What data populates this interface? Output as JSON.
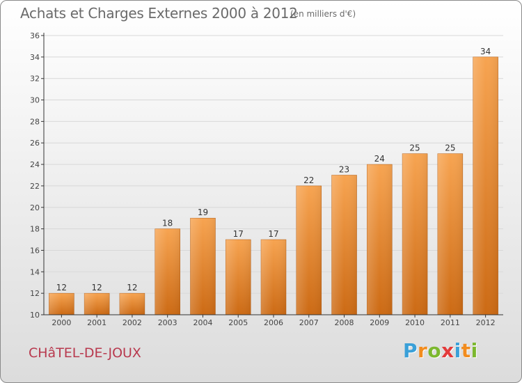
{
  "header": {
    "title": "Achats et Charges Externes 2000 à 2012",
    "subtitle": "(en milliers d'€)"
  },
  "footer": {
    "commune": "CHâTEL-DE-JOUX",
    "logo_letters": [
      "P",
      "r",
      "o",
      "x",
      "i",
      "t",
      "i"
    ],
    "logo_colors": [
      "#3aa0d8",
      "#f28c1e",
      "#7cb82f",
      "#e33b3b",
      "#3aa0d8",
      "#f28c1e",
      "#7cb82f"
    ]
  },
  "colors": {
    "bar_top": "#f7a451",
    "bar_bottom": "#cc6a14",
    "axis": "#333333",
    "grid": "#d8d8d8"
  },
  "chart_data": {
    "type": "bar",
    "title": "Achats et Charges Externes 2000 à 2012",
    "subtitle": "(en milliers d'€)",
    "categories": [
      "2000",
      "2001",
      "2002",
      "2003",
      "2004",
      "2005",
      "2006",
      "2007",
      "2008",
      "2009",
      "2010",
      "2011",
      "2012"
    ],
    "values": [
      12,
      12,
      12,
      18,
      19,
      17,
      17,
      22,
      23,
      24,
      25,
      25,
      34
    ],
    "ylim": [
      10,
      36
    ],
    "yticks": [
      10,
      12,
      14,
      16,
      18,
      20,
      22,
      24,
      26,
      28,
      30,
      32,
      34,
      36
    ],
    "grid": true,
    "xlabel": "",
    "ylabel": ""
  }
}
